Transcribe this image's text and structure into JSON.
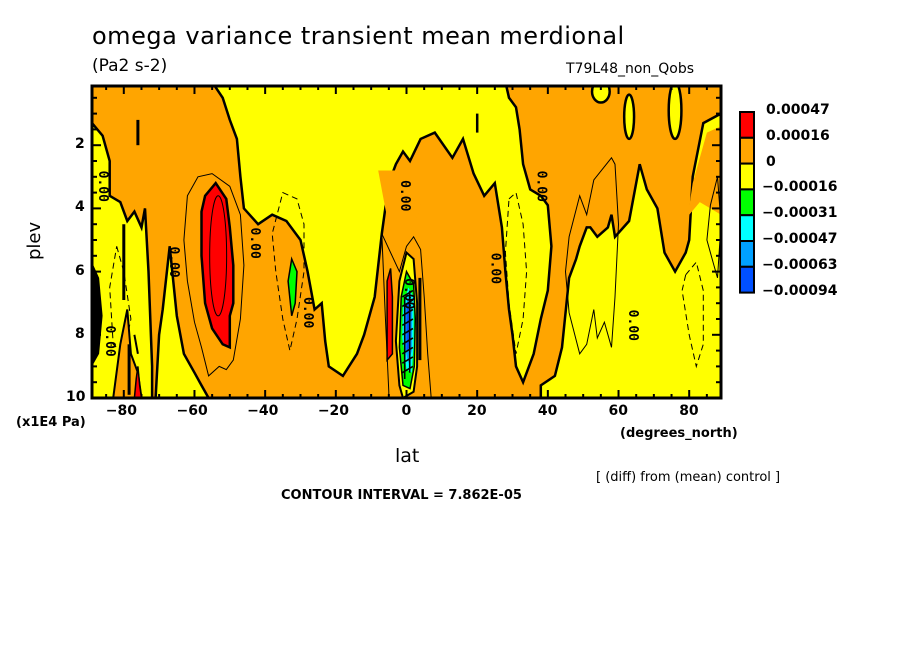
{
  "chart_data": {
    "type": "heatmap",
    "subtype": "filled-contour",
    "title": "omega variance transient mean merdional",
    "units": "(Pa2 s-2)",
    "experiment": "T79L48_non_Qobs",
    "xlabel": "lat",
    "xunit": "(degrees_north)",
    "ylabel": "plev",
    "yunit": "(x1E4 Pa)",
    "xlim": [
      -89,
      89
    ],
    "ylim": [
      10,
      0
    ],
    "x_ticks": [
      -80,
      -60,
      -40,
      -20,
      0,
      20,
      40,
      60,
      80
    ],
    "x_tick_labels": [
      "−80",
      "−60",
      "−40",
      "−20",
      "0",
      "20",
      "40",
      "60",
      "80"
    ],
    "y_ticks": [
      2,
      4,
      6,
      8,
      10
    ],
    "y_tick_labels": [
      "2",
      "4",
      "6",
      "8",
      "10"
    ],
    "contour_label": "0.00",
    "note": "[ (diff) from (mean) control ]",
    "contour_interval_text": "CONTOUR INTERVAL = 7.862E-05",
    "colorbar": {
      "levels": [
        "0.00047",
        "0.00016",
        "0",
        "−0.00016",
        "−0.00031",
        "−0.00047",
        "−0.00063",
        "−0.00094"
      ],
      "colors": [
        "#ff0000",
        "#ffa500",
        "#ffff00",
        "#00ff00",
        "#00ffff",
        "#00a0ff",
        "#0050ff"
      ]
    },
    "features": [
      {
        "name": "positive-max-south-midlat",
        "lat": -54,
        "plev": 5.6,
        "sign": "positive",
        "level": "above 0.00016"
      },
      {
        "name": "negative-min-south-subtropics",
        "lat": -33,
        "plev": 6.2,
        "sign": "negative",
        "level": "-0.00016 to -0.00031"
      },
      {
        "name": "negative-min-equator",
        "lat": 0,
        "plev": 7.5,
        "sign": "negative",
        "level": "below -0.00063"
      },
      {
        "name": "positive-strip-equator",
        "lat": -4,
        "plev": 7.0,
        "sign": "positive",
        "level": "above 0.00016"
      },
      {
        "name": "positive-south-pole-surface",
        "lat": -76,
        "plev": 9.5,
        "sign": "positive",
        "level": "above 0.00016"
      }
    ]
  }
}
